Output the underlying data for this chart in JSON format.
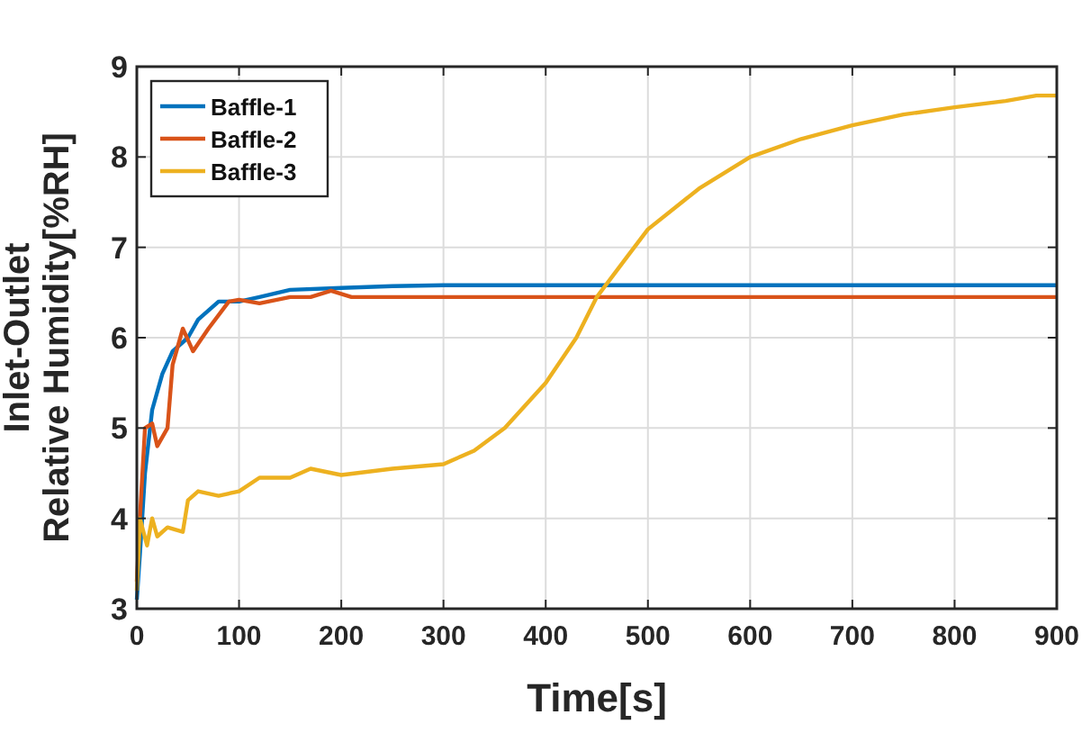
{
  "chart_data": {
    "type": "line",
    "xlabel": "Time[s]",
    "ylabel": "Inlet-Outlet\nRelative Humidity[%RH]",
    "xlim": [
      0,
      900
    ],
    "ylim": [
      3,
      9
    ],
    "xticks": [
      0,
      100,
      200,
      300,
      400,
      500,
      600,
      700,
      800,
      900
    ],
    "yticks": [
      3,
      4,
      5,
      6,
      7,
      8,
      9
    ],
    "grid": true,
    "legend": "top left",
    "series": [
      {
        "name": "Baffle-1",
        "color": "#0072bd",
        "x": [
          0,
          3,
          8,
          15,
          25,
          35,
          50,
          60,
          80,
          100,
          120,
          150,
          200,
          250,
          300,
          900
        ],
        "values": [
          3.1,
          3.6,
          4.5,
          5.2,
          5.6,
          5.85,
          6.0,
          6.2,
          6.4,
          6.4,
          6.45,
          6.53,
          6.55,
          6.57,
          6.58,
          6.58
        ]
      },
      {
        "name": "Baffle-2",
        "color": "#d95319",
        "x": [
          0,
          3,
          8,
          15,
          20,
          30,
          35,
          45,
          55,
          70,
          90,
          100,
          120,
          150,
          170,
          190,
          210,
          900
        ],
        "values": [
          3.3,
          4.0,
          5.0,
          5.05,
          4.8,
          5.0,
          5.7,
          6.1,
          5.85,
          6.1,
          6.4,
          6.42,
          6.38,
          6.45,
          6.45,
          6.52,
          6.45,
          6.45
        ]
      },
      {
        "name": "Baffle-3",
        "color": "#edb120",
        "x": [
          0,
          3,
          10,
          15,
          20,
          30,
          45,
          50,
          60,
          80,
          100,
          120,
          150,
          170,
          200,
          250,
          300,
          330,
          360,
          400,
          430,
          450,
          480,
          500,
          550,
          600,
          650,
          700,
          750,
          800,
          850,
          880,
          900
        ],
        "values": [
          3.2,
          4.0,
          3.7,
          4.0,
          3.8,
          3.9,
          3.85,
          4.2,
          4.3,
          4.25,
          4.3,
          4.45,
          4.45,
          4.55,
          4.48,
          4.55,
          4.6,
          4.75,
          5.0,
          5.5,
          6.0,
          6.45,
          6.9,
          7.2,
          7.65,
          8.0,
          8.2,
          8.35,
          8.47,
          8.55,
          8.62,
          8.68,
          8.68
        ]
      }
    ]
  }
}
